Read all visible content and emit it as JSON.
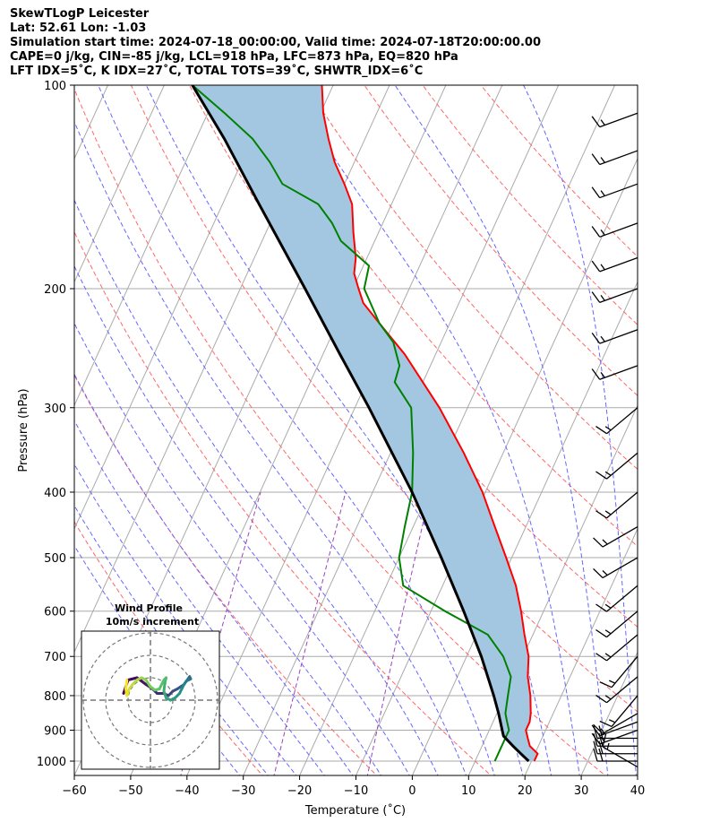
{
  "header": {
    "line1": "SkewTLogP Leicester",
    "line2": "Lat: 52.61   Lon: -1.03",
    "line3": "Simulation start time: 2024-07-18_00:00:00, Valid time: 2024-07-18T20:00:00.00",
    "line4": "CAPE=0 j/kg, CIN=-85 j/kg, LCL=918 hPa, LFC=873 hPa, EQ=820 hPa",
    "line5": "LFT IDX=5˚C, K IDX=27˚C, TOTAL TOTS=39˚C, SHWTR_IDX=6˚C"
  },
  "colors": {
    "temperature": "#ff0000",
    "dewpoint": "#008000",
    "parcel": "#000000",
    "shade": "#a3c7e0",
    "dry_adiabat": "#ff6666",
    "moist_adiabat": "#6666ff",
    "mixing_ratio": "#9944bb",
    "isotherm": "#aaaaaa"
  },
  "chart_data": [
    {
      "type": "line",
      "subtype": "skew-t log-p",
      "xlabel": "Temperature (˚C)",
      "ylabel": "Pressure (hPa)",
      "xlim": [
        -60,
        40
      ],
      "ylim": [
        1050,
        100
      ],
      "y_scale": "log",
      "x_ticks": [
        -60,
        -50,
        -40,
        -30,
        -20,
        -10,
        0,
        10,
        20,
        30,
        40
      ],
      "y_ticks": [
        1000,
        900,
        800,
        700,
        600,
        500,
        400,
        300,
        200,
        100
      ],
      "grid": true,
      "series": [
        {
          "role": "temperature",
          "points": [
            [
              1000,
              20.5
            ],
            [
              975,
              20.5
            ],
            [
              950,
              18.5
            ],
            [
              925,
              17.5
            ],
            [
              900,
              16.5
            ],
            [
              875,
              16.5
            ],
            [
              850,
              16.0
            ],
            [
              800,
              14.5
            ],
            [
              750,
              12.5
            ],
            [
              700,
              11.0
            ],
            [
              650,
              8.5
            ],
            [
              600,
              6.0
            ],
            [
              550,
              3.0
            ],
            [
              500,
              -1.0
            ],
            [
              450,
              -5.5
            ],
            [
              400,
              -10.5
            ],
            [
              350,
              -17.0
            ],
            [
              300,
              -25.0
            ],
            [
              250,
              -35.5
            ],
            [
              225,
              -42.5
            ],
            [
              210,
              -47.0
            ],
            [
              200,
              -49.0
            ],
            [
              190,
              -51.0
            ],
            [
              180,
              -52.0
            ],
            [
              165,
              -54.5
            ],
            [
              150,
              -57.0
            ],
            [
              140,
              -60.0
            ],
            [
              130,
              -63.5
            ],
            [
              120,
              -66.5
            ],
            [
              110,
              -69.5
            ],
            [
              100,
              -72.0
            ]
          ]
        },
        {
          "role": "dewpoint",
          "points": [
            [
              1000,
              13.5
            ],
            [
              975,
              13.5
            ],
            [
              950,
              13.5
            ],
            [
              925,
              13.5
            ],
            [
              900,
              13.5
            ],
            [
              875,
              12.5
            ],
            [
              850,
              11.5
            ],
            [
              800,
              10.5
            ],
            [
              750,
              9.5
            ],
            [
              700,
              6.5
            ],
            [
              650,
              2.0
            ],
            [
              600,
              -7.5
            ],
            [
              550,
              -17.0
            ],
            [
              500,
              -20.0
            ],
            [
              450,
              -21.5
            ],
            [
              400,
              -23.0
            ],
            [
              350,
              -26.0
            ],
            [
              300,
              -30.0
            ],
            [
              275,
              -35.0
            ],
            [
              260,
              -35.5
            ],
            [
              240,
              -38.5
            ],
            [
              225,
              -42.5
            ],
            [
              200,
              -48.0
            ],
            [
              185,
              -49.0
            ],
            [
              170,
              -56.0
            ],
            [
              160,
              -59.0
            ],
            [
              150,
              -63.0
            ],
            [
              140,
              -71.0
            ],
            [
              130,
              -75.0
            ],
            [
              120,
              -80.0
            ],
            [
              110,
              -87.0
            ],
            [
              100,
              -95.0
            ]
          ]
        },
        {
          "role": "parcel",
          "points": [
            [
              1000,
              19.5
            ],
            [
              975,
              17.5
            ],
            [
              950,
              15.5
            ],
            [
              918,
              13.0
            ],
            [
              900,
              12.3
            ],
            [
              850,
              10.3
            ],
            [
              800,
              8.0
            ],
            [
              700,
              2.6
            ],
            [
              600,
              -4.2
            ],
            [
              500,
              -12.5
            ],
            [
              400,
              -23.0
            ],
            [
              300,
              -37.5
            ],
            [
              250,
              -47.0
            ],
            [
              200,
              -58.5
            ],
            [
              150,
              -73.5
            ],
            [
              120,
              -85.0
            ],
            [
              100,
              -95.0
            ]
          ]
        }
      ]
    },
    {
      "type": "scatter",
      "subtype": "wind barbs",
      "xlabel": "",
      "ylabel": "",
      "units": "kt",
      "barbs": [
        {
          "p": 1020,
          "speed": 15,
          "dir": 300
        },
        {
          "p": 1000,
          "speed": 20,
          "dir": 270
        },
        {
          "p": 975,
          "speed": 20,
          "dir": 270
        },
        {
          "p": 950,
          "speed": 20,
          "dir": 270
        },
        {
          "p": 925,
          "speed": 20,
          "dir": 270
        },
        {
          "p": 900,
          "speed": 15,
          "dir": 250
        },
        {
          "p": 875,
          "speed": 15,
          "dir": 250
        },
        {
          "p": 850,
          "speed": 10,
          "dir": 240
        },
        {
          "p": 800,
          "speed": 15,
          "dir": 220
        },
        {
          "p": 750,
          "speed": 15,
          "dir": 230
        },
        {
          "p": 700,
          "speed": 15,
          "dir": 220
        },
        {
          "p": 650,
          "speed": 15,
          "dir": 230
        },
        {
          "p": 600,
          "speed": 15,
          "dir": 230
        },
        {
          "p": 550,
          "speed": 15,
          "dir": 230
        },
        {
          "p": 500,
          "speed": 15,
          "dir": 240
        },
        {
          "p": 450,
          "speed": 15,
          "dir": 240
        },
        {
          "p": 400,
          "speed": 15,
          "dir": 230
        },
        {
          "p": 350,
          "speed": 15,
          "dir": 230
        },
        {
          "p": 300,
          "speed": 15,
          "dir": 230
        },
        {
          "p": 260,
          "speed": 15,
          "dir": 250
        },
        {
          "p": 230,
          "speed": 15,
          "dir": 250
        },
        {
          "p": 200,
          "speed": 15,
          "dir": 250
        },
        {
          "p": 180,
          "speed": 15,
          "dir": 250
        },
        {
          "p": 160,
          "speed": 15,
          "dir": 250
        },
        {
          "p": 140,
          "speed": 15,
          "dir": 250
        },
        {
          "p": 125,
          "speed": 15,
          "dir": 250
        },
        {
          "p": 110,
          "speed": 15,
          "dir": 250
        }
      ]
    },
    {
      "type": "line",
      "subtype": "hodograph",
      "title": "Wind Profile",
      "subtitle": "10m/s increment",
      "xlabel": "",
      "ylabel": "",
      "ring_increment_ms": 10,
      "rings": [
        1,
        2,
        3
      ],
      "points": [
        [
          -1.2,
          0.3
        ],
        [
          -1.0,
          0.9
        ],
        [
          -0.6,
          1.0
        ],
        [
          -0.2,
          0.7
        ],
        [
          0.1,
          0.5
        ],
        [
          0.3,
          0.3
        ],
        [
          0.6,
          0.3
        ],
        [
          0.8,
          0.2
        ],
        [
          1.0,
          0.4
        ],
        [
          1.2,
          0.5
        ],
        [
          1.35,
          0.6
        ],
        [
          1.5,
          0.7
        ],
        [
          1.75,
          1.05
        ],
        [
          1.8,
          0.95
        ],
        [
          1.7,
          0.9
        ],
        [
          1.6,
          0.85
        ],
        [
          1.5,
          0.7
        ],
        [
          1.4,
          0.5
        ],
        [
          1.3,
          0.3
        ],
        [
          1.1,
          0.1
        ],
        [
          0.9,
          0.0
        ],
        [
          0.7,
          0.1
        ],
        [
          0.6,
          0.4
        ],
        [
          0.65,
          0.8
        ],
        [
          0.7,
          1.0
        ],
        [
          0.6,
          0.9
        ],
        [
          0.4,
          0.5
        ],
        [
          0.2,
          0.45
        ],
        [
          0.0,
          0.6
        ],
        [
          -0.2,
          0.9
        ],
        [
          -0.4,
          1.0
        ],
        [
          -0.6,
          0.9
        ],
        [
          -0.8,
          0.7
        ],
        [
          -0.95,
          0.5
        ],
        [
          -1.05,
          0.2
        ],
        [
          -1.1,
          0.5
        ],
        [
          -1.05,
          0.9
        ]
      ]
    }
  ]
}
